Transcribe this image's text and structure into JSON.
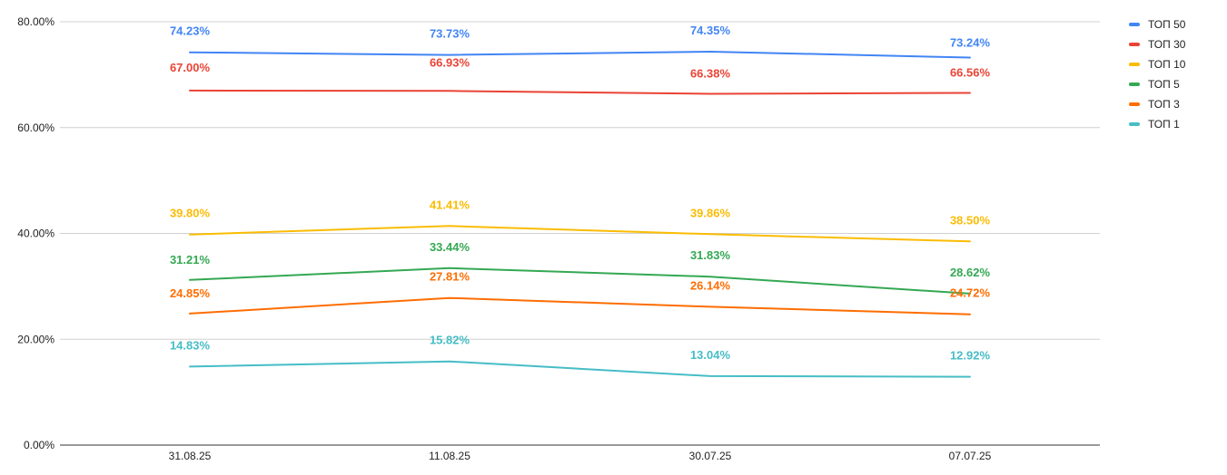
{
  "chart_data": {
    "type": "line",
    "title": "",
    "xlabel": "",
    "ylabel": "",
    "categories": [
      "31.08.25",
      "11.08.25",
      "30.07.25",
      "07.07.25"
    ],
    "ylim": [
      0,
      80
    ],
    "yticks": [
      "0.00%",
      "20.00%",
      "40.00%",
      "60.00%",
      "80.00%"
    ],
    "grid": true,
    "legend_position": "right",
    "series": [
      {
        "name": "ТОП 50",
        "color": "#4285f4",
        "values": [
          74.23,
          73.73,
          74.35,
          73.24
        ],
        "labels": [
          "74.23%",
          "73.73%",
          "74.35%",
          "73.24%"
        ]
      },
      {
        "name": "ТОП 30",
        "color": "#ea4335",
        "values": [
          67.0,
          66.93,
          66.38,
          66.56
        ],
        "labels": [
          "67.00%",
          "66.93%",
          "66.38%",
          "66.56%"
        ]
      },
      {
        "name": "ТОП 10",
        "color": "#fbbc04",
        "values": [
          39.8,
          41.41,
          39.86,
          38.5
        ],
        "labels": [
          "39.80%",
          "41.41%",
          "39.86%",
          "38.50%"
        ]
      },
      {
        "name": "ТОП 5",
        "color": "#34a853",
        "values": [
          31.21,
          33.44,
          31.83,
          28.62
        ],
        "labels": [
          "31.21%",
          "33.44%",
          "31.83%",
          "28.62%"
        ]
      },
      {
        "name": "ТОП 3",
        "color": "#ff6d01",
        "values": [
          24.85,
          27.81,
          26.14,
          24.72
        ],
        "labels": [
          "24.85%",
          "27.81%",
          "26.14%",
          "24.72%"
        ]
      },
      {
        "name": "ТОП 1",
        "color": "#46bdc6",
        "values": [
          14.83,
          15.82,
          13.04,
          12.92
        ],
        "labels": [
          "14.83%",
          "15.82%",
          "13.04%",
          "12.92%"
        ]
      }
    ]
  }
}
